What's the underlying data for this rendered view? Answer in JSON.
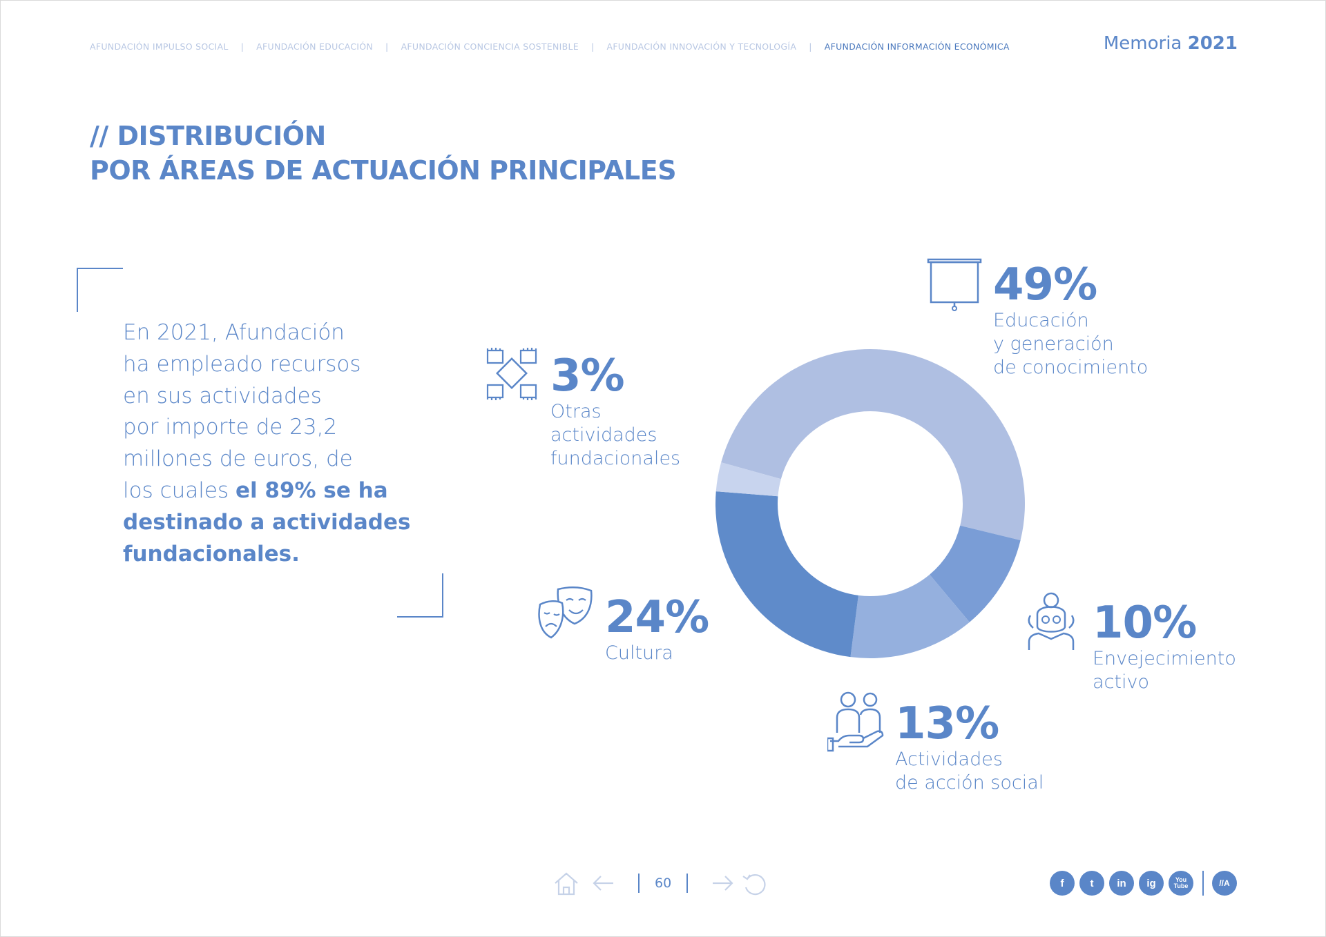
{
  "header": {
    "nav": [
      {
        "label": "AFUNDACIÓN IMPULSO SOCIAL",
        "active": false
      },
      {
        "label": "AFUNDACIÓN EDUCACIÓN",
        "active": false
      },
      {
        "label": "AFUNDACIÓN CONCIENCIA SOSTENIBLE",
        "active": false
      },
      {
        "label": "AFUNDACIÓN INNOVACIÓN Y TECNOLOGÍA",
        "active": false
      },
      {
        "label": "AFUNDACIÓN INFORMACIÓN ECONÓMICA",
        "active": true
      }
    ],
    "separator": "|",
    "memoria_label": "Memoria",
    "memoria_year": "2021"
  },
  "title": {
    "line1": "// DISTRIBUCIÓN",
    "line2": "POR ÁREAS DE ACTUACIÓN PRINCIPALES"
  },
  "intro": {
    "lines": [
      "En 2021, Afundación",
      "ha empleado recursos",
      "en sus actividades",
      "por importe de 23,2",
      "millones de euros, de"
    ],
    "line6_plain": "los cuales ",
    "line6_bold": "el 89% se ha",
    "line7_bold": "destinado a actividades",
    "line8_bold": "fundacionales."
  },
  "chart_data": {
    "type": "pie",
    "style": "donut",
    "values": [
      49,
      10,
      13,
      24,
      3
    ],
    "categories": [
      "Educación y generación de conocimiento",
      "Envejecimiento activo",
      "Actividades de acción social",
      "Cultura",
      "Otras actividades fundacionales"
    ],
    "colors": [
      "#afbfe2",
      "#7a9dd6",
      "#95b0de",
      "#5f8bca",
      "#c8d4ee"
    ],
    "labels": [
      {
        "pct": "49%",
        "desc": [
          "Educación",
          "y generación",
          "de conocimiento"
        ],
        "icon": "projector-screen-icon"
      },
      {
        "pct": "10%",
        "desc": [
          "Envejecimiento",
          "activo"
        ],
        "icon": "elderly-person-icon"
      },
      {
        "pct": "13%",
        "desc": [
          "Actividades",
          "de acción social"
        ],
        "icon": "helping-hand-people-icon"
      },
      {
        "pct": "24%",
        "desc": [
          "Cultura"
        ],
        "icon": "theater-masks-icon"
      },
      {
        "pct": "3%",
        "desc": [
          "Otras",
          "actividades",
          "fundacionales"
        ],
        "icon": "joined-hands-icon"
      }
    ]
  },
  "footer": {
    "page_number": "60",
    "social": [
      "f",
      "t",
      "in",
      "ig",
      "You Tube",
      "//A"
    ]
  }
}
